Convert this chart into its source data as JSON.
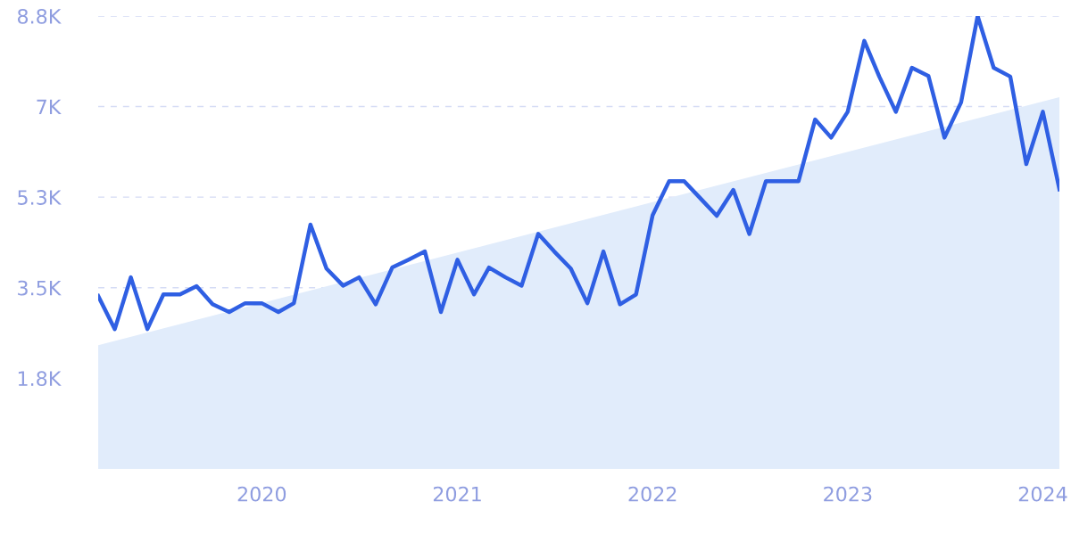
{
  "chart_data": {
    "type": "line",
    "x": [
      "2019-03",
      "2019-04",
      "2019-05",
      "2019-06",
      "2019-07",
      "2019-08",
      "2019-09",
      "2019-10",
      "2019-11",
      "2019-12",
      "2020-01",
      "2020-02",
      "2020-03",
      "2020-04",
      "2020-05",
      "2020-06",
      "2020-07",
      "2020-08",
      "2020-09",
      "2020-10",
      "2020-11",
      "2020-12",
      "2021-01",
      "2021-02",
      "2021-03",
      "2021-04",
      "2021-05",
      "2021-06",
      "2021-07",
      "2021-08",
      "2021-09",
      "2021-10",
      "2021-11",
      "2021-12",
      "2022-01",
      "2022-02",
      "2022-03",
      "2022-04",
      "2022-05",
      "2022-06",
      "2022-07",
      "2022-08",
      "2022-09",
      "2022-10",
      "2022-11",
      "2022-12",
      "2023-01",
      "2023-02",
      "2023-03",
      "2023-04",
      "2023-05",
      "2023-06",
      "2023-07",
      "2023-08",
      "2023-09",
      "2023-10",
      "2023-11",
      "2023-12",
      "2024-01",
      "2024-02"
    ],
    "series": [
      {
        "type": "area",
        "color": "#e1ecfb",
        "x": [
          "2019-03",
          "2024-02"
        ],
        "values": [
          2390,
          7180
        ]
      },
      {
        "color": "#2f5fe3",
        "values": [
          3340,
          2700,
          3700,
          2700,
          3370,
          3370,
          3530,
          3180,
          3030,
          3200,
          3200,
          3030,
          3200,
          4720,
          3870,
          3540,
          3700,
          3180,
          3890,
          4040,
          4200,
          3030,
          4040,
          3370,
          3890,
          3700,
          3540,
          4540,
          4200,
          3870,
          3200,
          4200,
          3180,
          3370,
          4900,
          5560,
          5560,
          5220,
          4890,
          5390,
          4540,
          5560,
          5560,
          5560,
          6750,
          6400,
          6900,
          8270,
          7580,
          6900,
          7750,
          7590,
          6400,
          7080,
          8750,
          7750,
          7580,
          5890,
          6900,
          5400
        ]
      }
    ],
    "xlim": [
      "2019-03",
      "2024-02"
    ],
    "xticks": [
      {
        "value": "2020-01",
        "label": "2020"
      },
      {
        "value": "2021-01",
        "label": "2021"
      },
      {
        "value": "2022-01",
        "label": "2022"
      },
      {
        "value": "2023-01",
        "label": "2023"
      },
      {
        "value": "2024-01",
        "label": "2024"
      }
    ],
    "ylim": [
      0,
      8750
    ],
    "yticks": [
      {
        "value": 1750,
        "label": "1.8K"
      },
      {
        "value": 3500,
        "label": "3.5K"
      },
      {
        "value": 5250,
        "label": "5.3K"
      },
      {
        "value": 7000,
        "label": "7K"
      },
      {
        "value": 8750,
        "label": "8.8K"
      }
    ],
    "grid": "y",
    "line_style": "solid",
    "marker": "none"
  }
}
